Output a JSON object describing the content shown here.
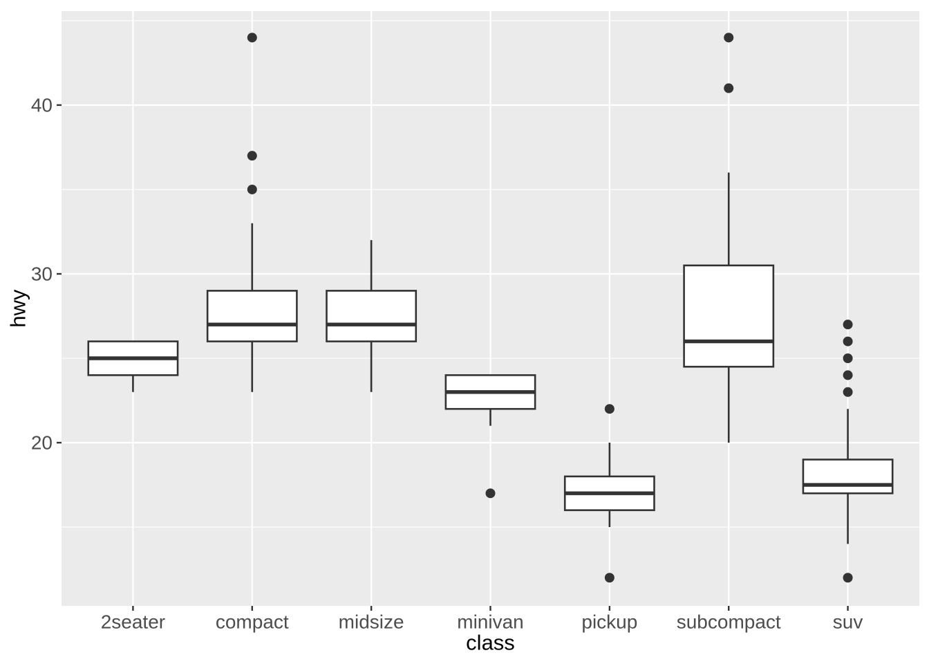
{
  "chart_data": {
    "type": "boxplot",
    "title": "",
    "xlabel": "class",
    "ylabel": "hwy",
    "categories": [
      "2seater",
      "compact",
      "midsize",
      "minivan",
      "pickup",
      "subcompact",
      "suv"
    ],
    "series": [
      {
        "category": "2seater",
        "whisker_low": 23,
        "q1": 24,
        "median": 25,
        "q3": 26,
        "whisker_high": 26,
        "outliers": []
      },
      {
        "category": "compact",
        "whisker_low": 23,
        "q1": 26,
        "median": 27,
        "q3": 29,
        "whisker_high": 33,
        "outliers": [
          35,
          37,
          44
        ]
      },
      {
        "category": "midsize",
        "whisker_low": 23,
        "q1": 26,
        "median": 27,
        "q3": 29,
        "whisker_high": 32,
        "outliers": []
      },
      {
        "category": "minivan",
        "whisker_low": 21,
        "q1": 22,
        "median": 23,
        "q3": 24,
        "whisker_high": 24,
        "outliers": [
          17
        ]
      },
      {
        "category": "pickup",
        "whisker_low": 15,
        "q1": 16,
        "median": 17,
        "q3": 18,
        "whisker_high": 20,
        "outliers": [
          22,
          12
        ]
      },
      {
        "category": "subcompact",
        "whisker_low": 20,
        "q1": 24.5,
        "median": 26,
        "q3": 30.5,
        "whisker_high": 36,
        "outliers": [
          41,
          44
        ]
      },
      {
        "category": "suv",
        "whisker_low": 14,
        "q1": 17,
        "median": 17.5,
        "q3": 19,
        "whisker_high": 22,
        "outliers": [
          27,
          26,
          25,
          24,
          23,
          12
        ]
      }
    ],
    "y_axis": {
      "ticks": [
        20,
        30,
        40
      ],
      "tick_labels": [
        "20",
        "30",
        "40"
      ],
      "minor_ticks": [
        15,
        25,
        35,
        45
      ],
      "range": [
        10.33,
        45.57
      ]
    },
    "grid": "major-and-minor, white on gray panel",
    "legend": false,
    "colors": {
      "page_bg": "#FFFFFF",
      "panel_bg": "#EBEBEB",
      "grid": "#FFFFFF",
      "box_stroke": "#333333",
      "box_fill": "#FFFFFF",
      "median": "#333333",
      "outlier": "#333333",
      "axis_text": "#4D4D4D",
      "axis_title": "#000000",
      "tick_mark": "#333333"
    }
  }
}
